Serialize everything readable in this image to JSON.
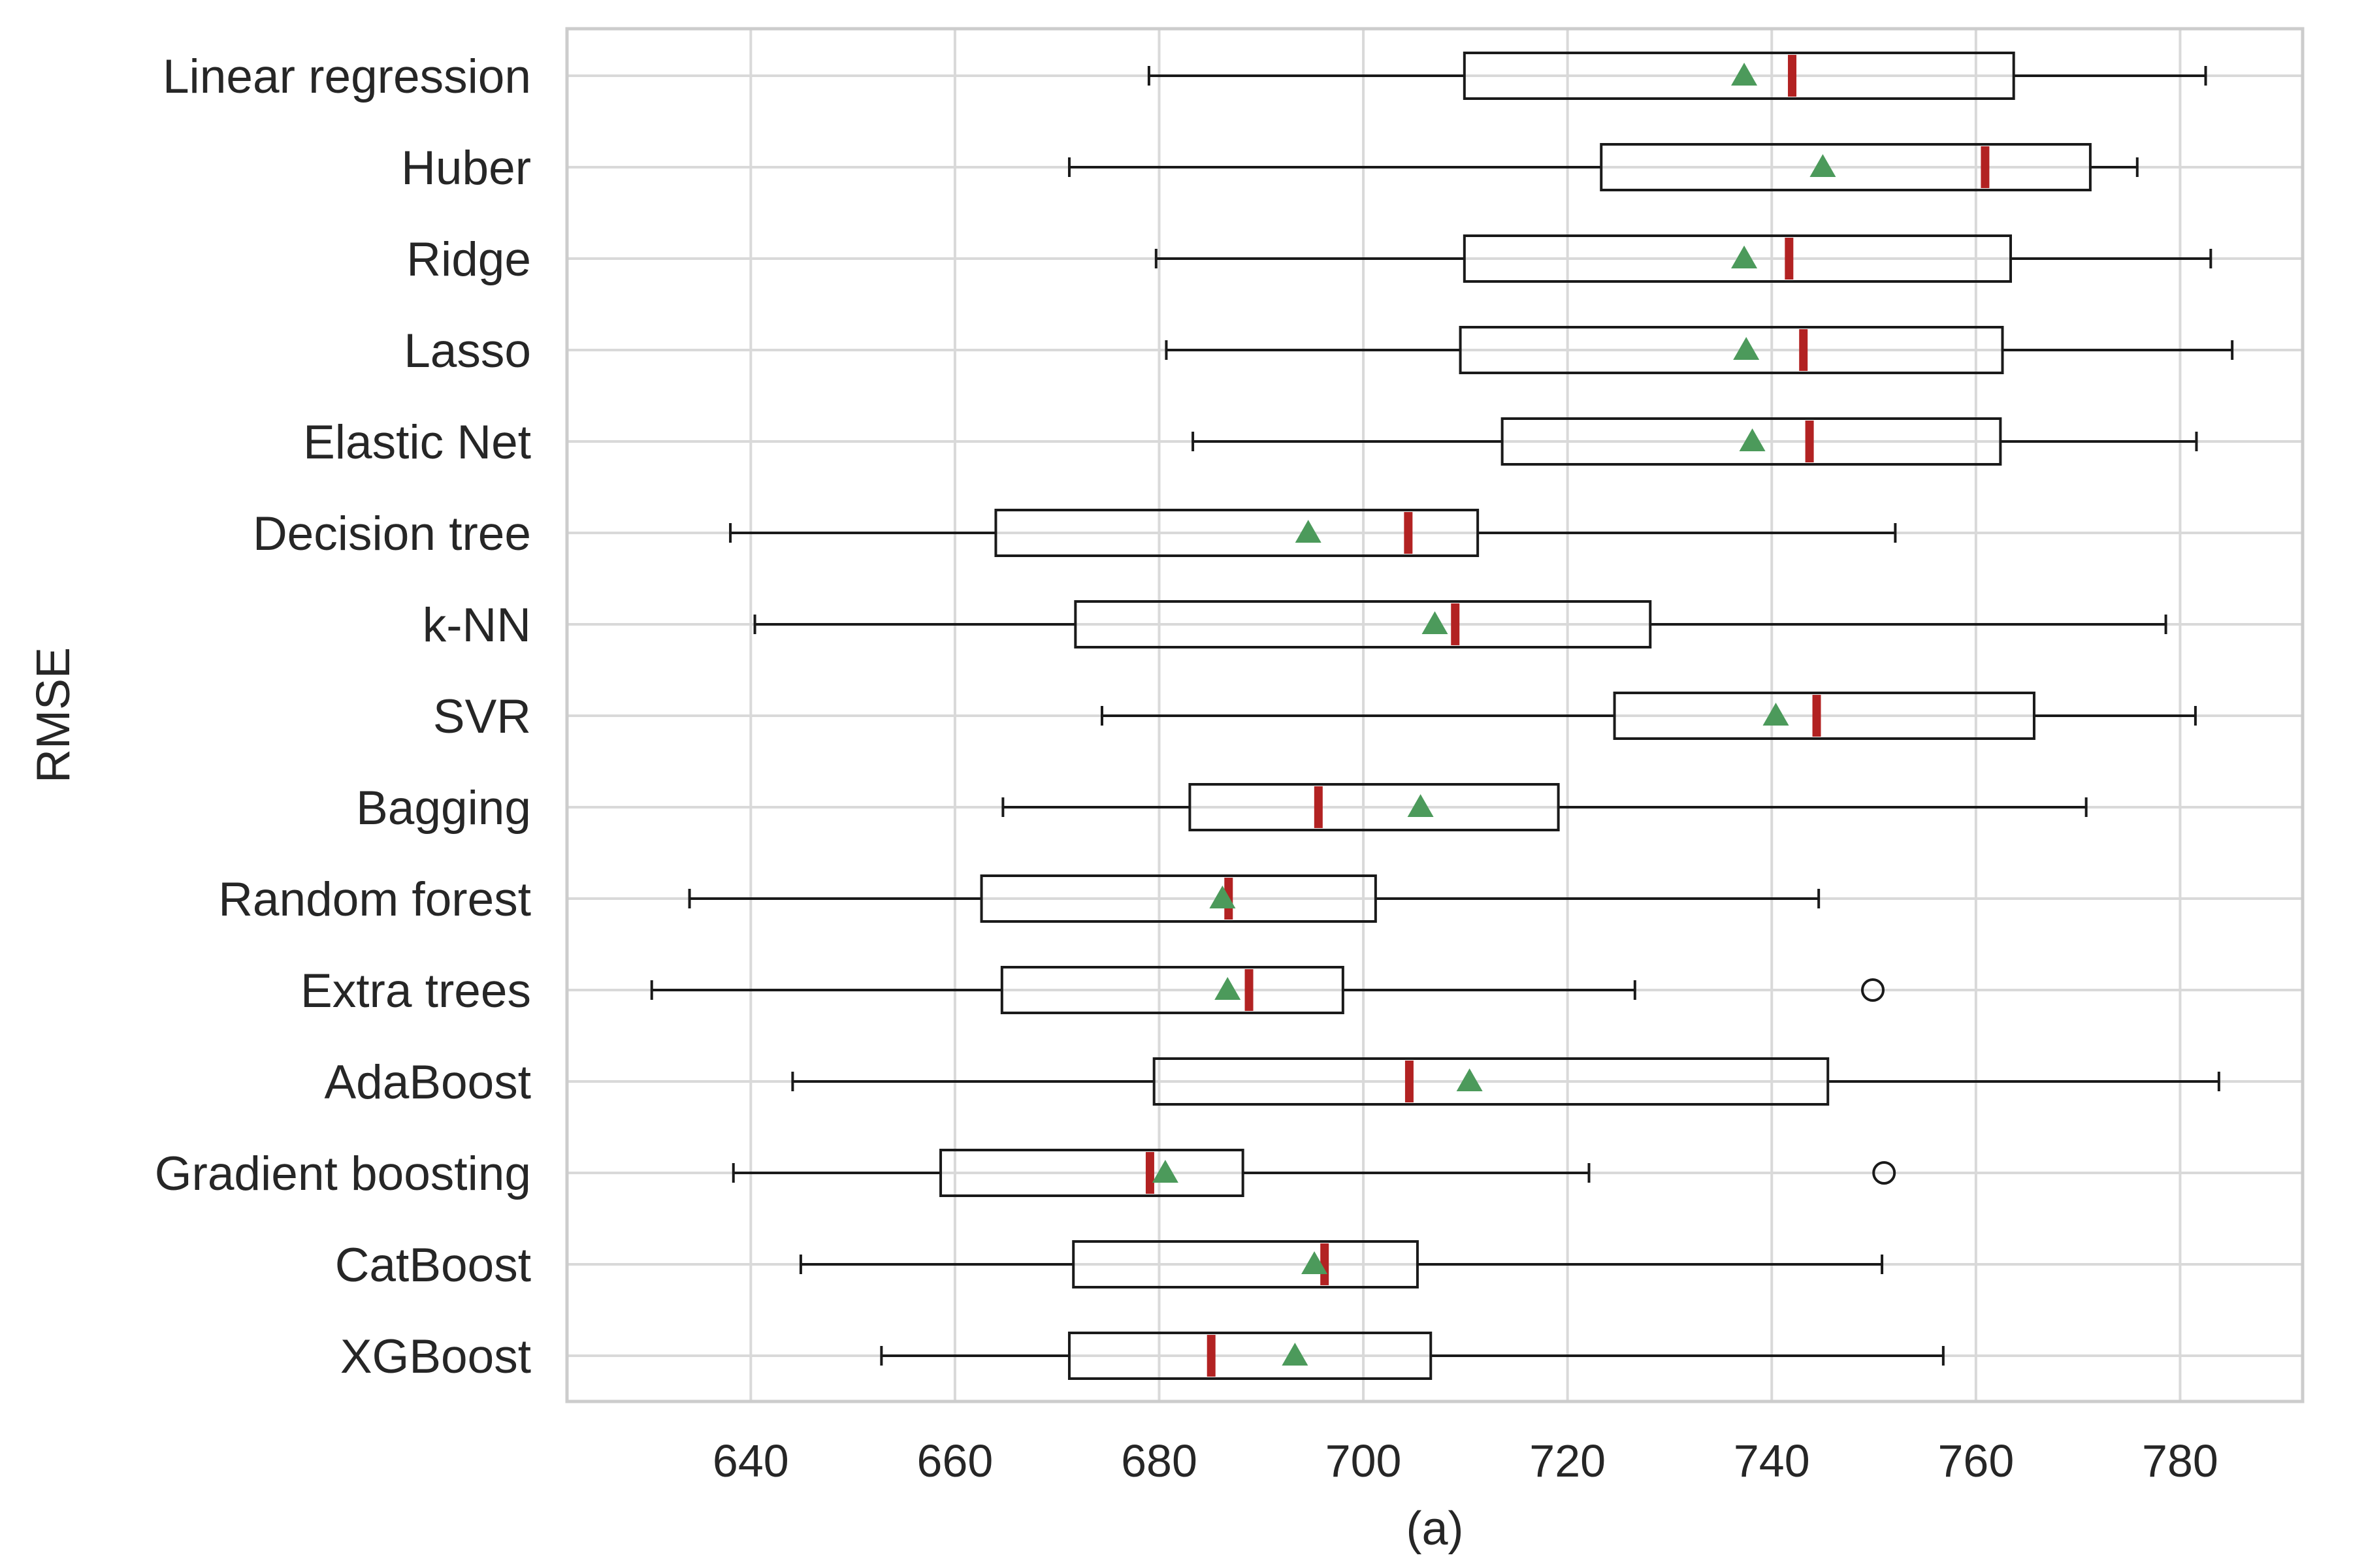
{
  "chart_data": {
    "type": "boxplot",
    "orientation": "horizontal",
    "xlabel": "(a)",
    "ylabel": "RMSE",
    "xlim": [
      622,
      792
    ],
    "xticks": [
      640,
      660,
      680,
      700,
      720,
      740,
      760,
      780
    ],
    "grid": true,
    "colors": {
      "median": "#b22222",
      "mean_marker": "#4c9a5b",
      "box": "#1a1a1a",
      "grid": "#d9d9d9",
      "spine": "#cccccc"
    },
    "categories": [
      "Linear regression",
      "Huber",
      "Ridge",
      "Lasso",
      "Elastic Net",
      "Decision tree",
      "k-NN",
      "SVR",
      "Bagging",
      "Random forest",
      "Extra trees",
      "AdaBoost",
      "Gradient boosting",
      "CatBoost",
      "XGBoost"
    ],
    "boxes": [
      {
        "whislo": 679.0,
        "q1": 709.9,
        "med": 742.0,
        "mean": 737.3,
        "q3": 763.7,
        "whishi": 782.5,
        "fliers": []
      },
      {
        "whislo": 671.2,
        "q1": 723.3,
        "med": 760.9,
        "mean": 745.0,
        "q3": 771.2,
        "whishi": 775.8,
        "fliers": []
      },
      {
        "whislo": 679.7,
        "q1": 709.9,
        "med": 741.7,
        "mean": 737.3,
        "q3": 763.4,
        "whishi": 783.0,
        "fliers": []
      },
      {
        "whislo": 680.7,
        "q1": 709.5,
        "med": 743.1,
        "mean": 737.5,
        "q3": 762.6,
        "whishi": 785.1,
        "fliers": []
      },
      {
        "whislo": 683.3,
        "q1": 713.6,
        "med": 743.7,
        "mean": 738.1,
        "q3": 762.4,
        "whishi": 781.6,
        "fliers": []
      },
      {
        "whislo": 638.0,
        "q1": 664.0,
        "med": 704.4,
        "mean": 694.6,
        "q3": 711.2,
        "whishi": 752.1,
        "fliers": []
      },
      {
        "whislo": 640.4,
        "q1": 671.8,
        "med": 709.0,
        "mean": 707.0,
        "q3": 728.1,
        "whishi": 778.6,
        "fliers": []
      },
      {
        "whislo": 674.4,
        "q1": 724.6,
        "med": 744.4,
        "mean": 740.4,
        "q3": 765.7,
        "whishi": 781.5,
        "fliers": []
      },
      {
        "whislo": 664.7,
        "q1": 683.0,
        "med": 695.6,
        "mean": 705.6,
        "q3": 719.1,
        "whishi": 770.8,
        "fliers": []
      },
      {
        "whislo": 634.0,
        "q1": 662.6,
        "med": 686.8,
        "mean": 686.2,
        "q3": 701.2,
        "whishi": 744.6,
        "fliers": []
      },
      {
        "whislo": 630.3,
        "q1": 664.6,
        "med": 688.8,
        "mean": 686.7,
        "q3": 698.0,
        "whishi": 726.6,
        "fliers": [
          749.9
        ]
      },
      {
        "whislo": 644.1,
        "q1": 679.5,
        "med": 704.5,
        "mean": 710.4,
        "q3": 745.5,
        "whishi": 783.8,
        "fliers": []
      },
      {
        "whislo": 638.3,
        "q1": 658.6,
        "med": 679.1,
        "mean": 680.6,
        "q3": 688.2,
        "whishi": 722.1,
        "fliers": [
          751.0
        ]
      },
      {
        "whislo": 644.9,
        "q1": 671.6,
        "med": 696.2,
        "mean": 695.2,
        "q3": 705.3,
        "whishi": 750.8,
        "fliers": []
      },
      {
        "whislo": 652.8,
        "q1": 671.2,
        "med": 685.1,
        "mean": 693.3,
        "q3": 706.6,
        "whishi": 756.8,
        "fliers": []
      }
    ]
  }
}
